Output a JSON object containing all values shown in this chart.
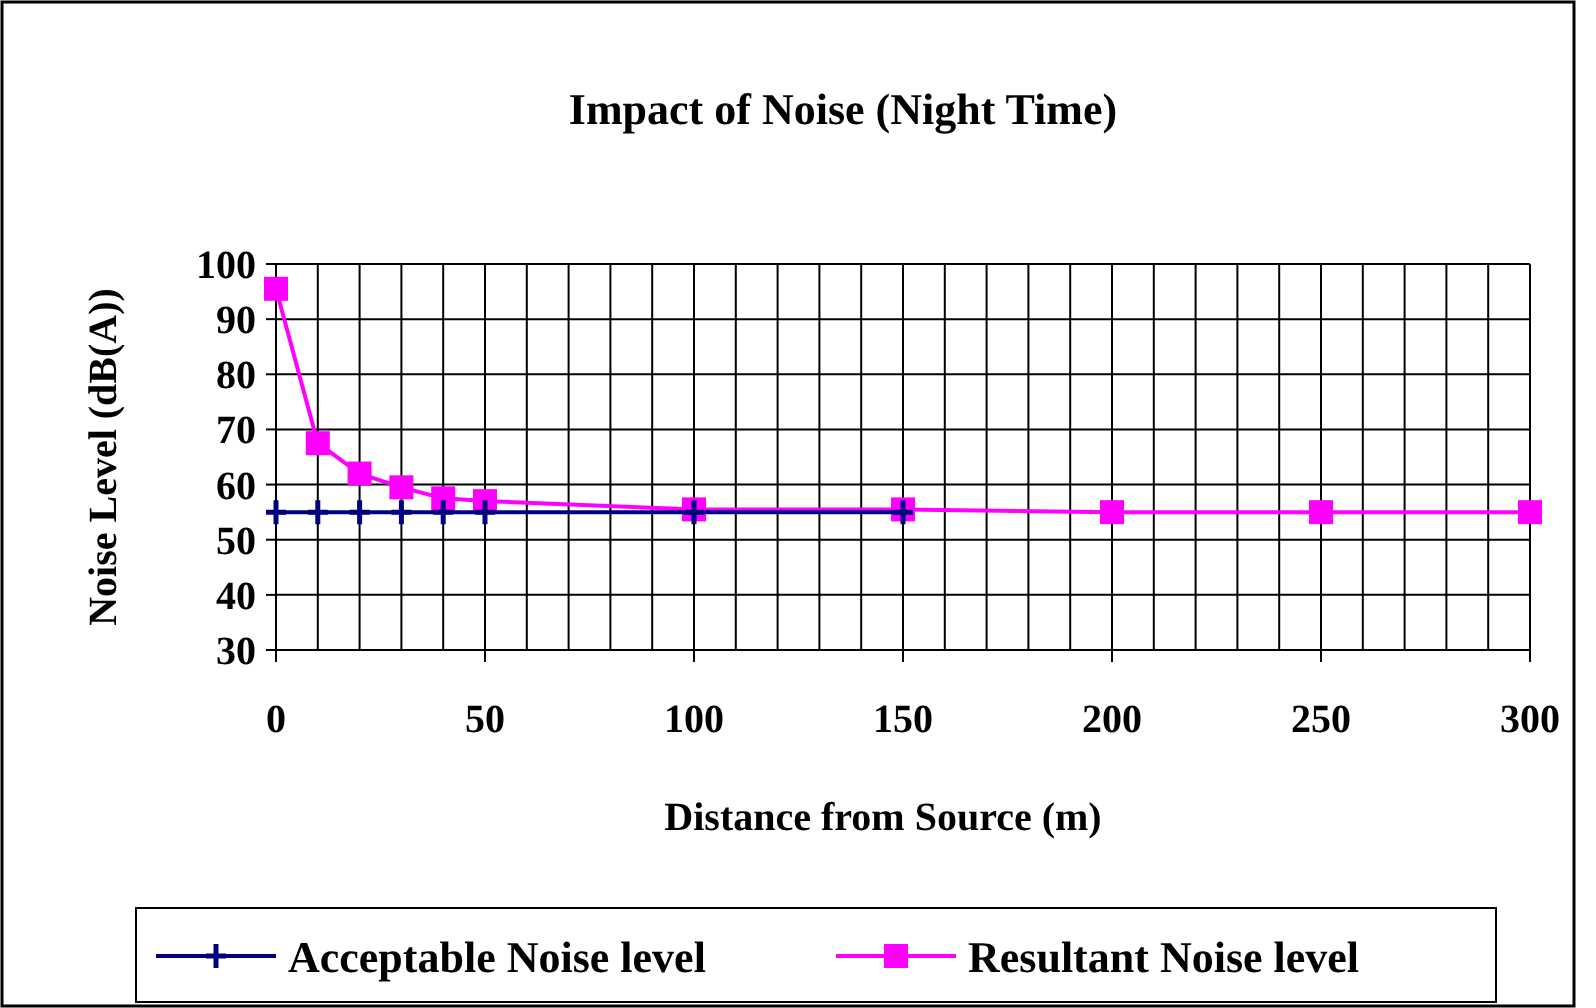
{
  "chart_data": {
    "type": "line",
    "title": "Impact of Noise (Night Time)",
    "xlabel": "Distance from Source (m)",
    "ylabel": "Noise Level (dB(A))",
    "x": [
      0,
      10,
      20,
      30,
      40,
      50,
      100,
      150,
      200,
      250,
      300
    ],
    "series": [
      {
        "name": "Acceptable Noise level",
        "color": "#000080",
        "values": [
          55,
          55,
          55,
          55,
          55,
          55,
          55,
          55,
          null,
          null,
          null
        ],
        "marker": "cross"
      },
      {
        "name": "Resultant Noise level",
        "color": "#ff00ff",
        "values": [
          95.5,
          67.5,
          62,
          59.5,
          57.5,
          57,
          55.5,
          55.5,
          55,
          55,
          55
        ],
        "marker": "square"
      }
    ],
    "xlim": [
      0,
      300
    ],
    "xticks": [
      0,
      50,
      100,
      150,
      200,
      250,
      300
    ],
    "ylim": [
      30,
      100
    ],
    "yticks": [
      30,
      40,
      50,
      60,
      70,
      80,
      90,
      100
    ],
    "grid": true,
    "legend": "bottom",
    "line_style": "solid"
  }
}
